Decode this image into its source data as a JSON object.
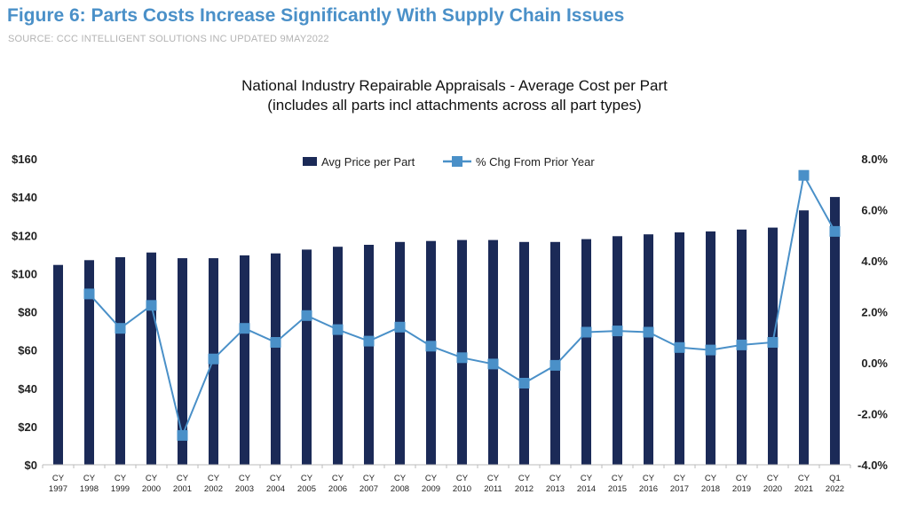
{
  "figure": {
    "title": "Figure 6: Parts Costs Increase Significantly With Supply Chain Issues",
    "source": "SOURCE: CCC INTELLIGENT SOLUTIONS INC UPDATED 9MAY2022"
  },
  "colors": {
    "bar": "#1b2a57",
    "line": "#4a90c8",
    "title": "#4a90c8"
  },
  "chart_data": {
    "type": "bar",
    "title_line1": "National Industry Repairable Appraisals - Average Cost per Part",
    "title_line2": "(includes all parts incl attachments across all part types)",
    "legend_position": "top-center",
    "grid": false,
    "categories": [
      [
        "CY",
        "1997"
      ],
      [
        "CY",
        "1998"
      ],
      [
        "CY",
        "1999"
      ],
      [
        "CY",
        "2000"
      ],
      [
        "CY",
        "2001"
      ],
      [
        "CY",
        "2002"
      ],
      [
        "CY",
        "2003"
      ],
      [
        "CY",
        "2004"
      ],
      [
        "CY",
        "2005"
      ],
      [
        "CY",
        "2006"
      ],
      [
        "CY",
        "2007"
      ],
      [
        "CY",
        "2008"
      ],
      [
        "CY",
        "2009"
      ],
      [
        "CY",
        "2010"
      ],
      [
        "CY",
        "2011"
      ],
      [
        "CY",
        "2012"
      ],
      [
        "CY",
        "2013"
      ],
      [
        "CY",
        "2014"
      ],
      [
        "CY",
        "2015"
      ],
      [
        "CY",
        "2016"
      ],
      [
        "CY",
        "2017"
      ],
      [
        "CY",
        "2018"
      ],
      [
        "CY",
        "2019"
      ],
      [
        "CY",
        "2020"
      ],
      [
        "CY",
        "2021"
      ],
      [
        "Q1",
        "2022"
      ]
    ],
    "series": [
      {
        "name": "Avg Price per Part",
        "type": "bar",
        "axis": "left",
        "values": [
          104.5,
          107,
          108.5,
          111,
          108,
          108,
          109.5,
          110.5,
          112.5,
          114,
          115,
          116.5,
          117,
          117.5,
          117.5,
          116.5,
          116.5,
          118,
          119.5,
          120.5,
          121.5,
          122,
          123,
          124,
          133,
          140
        ]
      },
      {
        "name": "% Chg From Prior Year",
        "type": "line",
        "axis": "right",
        "values": [
          null,
          2.7,
          1.35,
          2.25,
          -2.85,
          0.15,
          1.35,
          0.8,
          1.85,
          1.3,
          0.85,
          1.4,
          0.65,
          0.2,
          -0.05,
          -0.8,
          -0.1,
          1.2,
          1.25,
          1.2,
          0.6,
          0.5,
          0.7,
          0.8,
          7.35,
          5.15
        ]
      }
    ],
    "y_left": {
      "min": 0,
      "max": 160,
      "ticks": [
        "$0",
        "$20",
        "$40",
        "$60",
        "$80",
        "$100",
        "$120",
        "$140",
        "$160"
      ]
    },
    "y_right": {
      "min": -4,
      "max": 8,
      "ticks": [
        "-4.0%",
        "-2.0%",
        "0.0%",
        "2.0%",
        "4.0%",
        "6.0%",
        "8.0%"
      ]
    }
  }
}
